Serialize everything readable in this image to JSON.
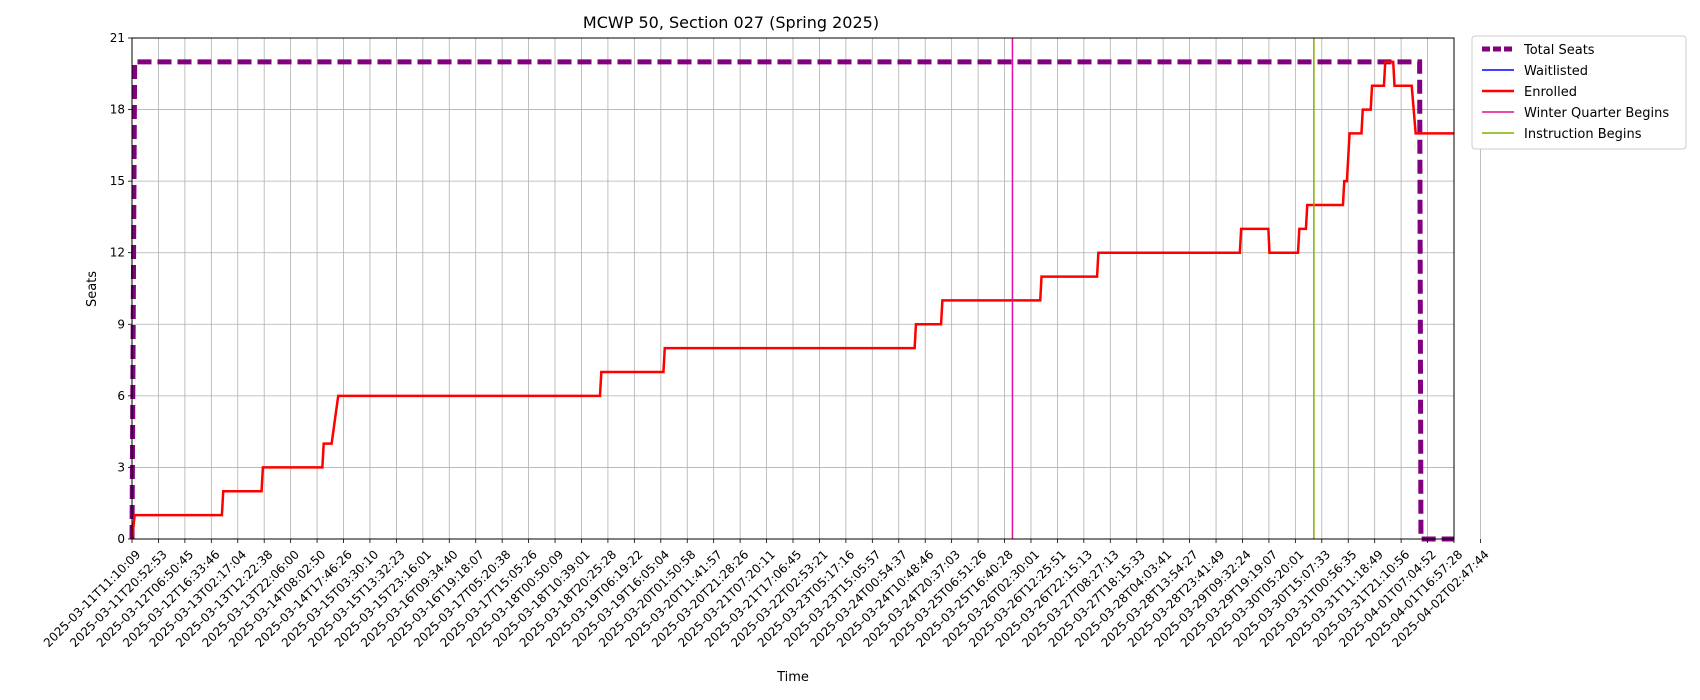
{
  "chart_data": {
    "type": "line",
    "title": "MCWP 50, Section 027 (Spring 2025)",
    "xlabel": "Time",
    "ylabel": "Seats",
    "ylim": [
      0,
      21
    ],
    "yticks": [
      0,
      3,
      6,
      9,
      12,
      15,
      18,
      21
    ],
    "grid": true,
    "legend_position": "outside-top-right",
    "xticks": [
      "2025-03-11T11:10:09",
      "2025-03-11T20:52:53",
      "2025-03-12T06:50:45",
      "2025-03-12T16:33:46",
      "2025-03-13T02:17:04",
      "2025-03-13T12:22:38",
      "2025-03-13T22:06:00",
      "2025-03-14T08:02:50",
      "2025-03-14T17:46:26",
      "2025-03-15T03:30:10",
      "2025-03-15T13:32:23",
      "2025-03-15T23:16:01",
      "2025-03-16T09:34:40",
      "2025-03-16T19:18:07",
      "2025-03-17T05:20:38",
      "2025-03-17T15:05:26",
      "2025-03-18T00:50:09",
      "2025-03-18T10:39:01",
      "2025-03-18T20:25:28",
      "2025-03-19T06:19:22",
      "2025-03-19T16:05:04",
      "2025-03-20T01:50:58",
      "2025-03-20T11:41:57",
      "2025-03-20T21:28:26",
      "2025-03-21T07:20:11",
      "2025-03-21T17:06:45",
      "2025-03-22T02:53:21",
      "2025-03-23T05:17:16",
      "2025-03-23T15:05:57",
      "2025-03-24T00:54:37",
      "2025-03-24T10:48:46",
      "2025-03-24T20:37:03",
      "2025-03-25T06:51:26",
      "2025-03-25T16:40:28",
      "2025-03-26T02:30:01",
      "2025-03-26T12:25:51",
      "2025-03-26T22:15:13",
      "2025-03-27T08:27:13",
      "2025-03-27T18:15:33",
      "2025-03-28T04:03:41",
      "2025-03-28T13:54:27",
      "2025-03-28T23:41:49",
      "2025-03-29T09:32:24",
      "2025-03-29T19:19:07",
      "2025-03-30T05:20:01",
      "2025-03-30T15:07:33",
      "2025-03-31T00:56:35",
      "2025-03-31T11:18:49",
      "2025-03-31T21:10:56",
      "2025-04-01T07:04:52",
      "2025-04-01T16:57:28",
      "2025-04-02T02:47:44"
    ],
    "series": [
      {
        "name": "Total Seats",
        "color": "#800080",
        "style": "dashed",
        "points": [
          [
            0,
            0
          ],
          [
            0.1,
            20
          ],
          [
            48.7,
            20
          ],
          [
            48.75,
            0
          ],
          [
            50,
            0
          ]
        ]
      },
      {
        "name": "Waitlisted",
        "color": "#0000ff",
        "style": "solid",
        "points": []
      },
      {
        "name": "Enrolled",
        "color": "#ff0000",
        "style": "solid",
        "points": [
          [
            0,
            0
          ],
          [
            0.1,
            1
          ],
          [
            3.4,
            1
          ],
          [
            3.45,
            2
          ],
          [
            4.9,
            2
          ],
          [
            4.95,
            3
          ],
          [
            7.2,
            3
          ],
          [
            7.25,
            4
          ],
          [
            7.55,
            4
          ],
          [
            7.8,
            6
          ],
          [
            17.7,
            6
          ],
          [
            17.75,
            7
          ],
          [
            20.1,
            7
          ],
          [
            20.15,
            8
          ],
          [
            29.6,
            8
          ],
          [
            29.65,
            9
          ],
          [
            30.6,
            9
          ],
          [
            30.65,
            10
          ],
          [
            34.35,
            10
          ],
          [
            34.4,
            11
          ],
          [
            36.5,
            11
          ],
          [
            36.55,
            12
          ],
          [
            41.9,
            12
          ],
          [
            41.95,
            13
          ],
          [
            42.98,
            13
          ],
          [
            43.02,
            12
          ],
          [
            44.1,
            12
          ],
          [
            44.15,
            13
          ],
          [
            44.4,
            13
          ],
          [
            44.45,
            14
          ],
          [
            45.8,
            14
          ],
          [
            45.85,
            15
          ],
          [
            45.95,
            15
          ],
          [
            46.05,
            17
          ],
          [
            46.5,
            17
          ],
          [
            46.55,
            18
          ],
          [
            46.85,
            18
          ],
          [
            46.9,
            19
          ],
          [
            47.35,
            19
          ],
          [
            47.4,
            20
          ],
          [
            47.7,
            20
          ],
          [
            47.75,
            19
          ],
          [
            48.4,
            19
          ],
          [
            48.55,
            17
          ],
          [
            50,
            17
          ]
        ]
      },
      {
        "name": "Winter Quarter Begins",
        "color": "#e0109c",
        "style": "vline",
        "x": 33.3
      },
      {
        "name": "Instruction Begins",
        "color": "#7fb000",
        "style": "vline",
        "x": 44.7
      }
    ],
    "x_range": [
      0,
      50
    ]
  }
}
